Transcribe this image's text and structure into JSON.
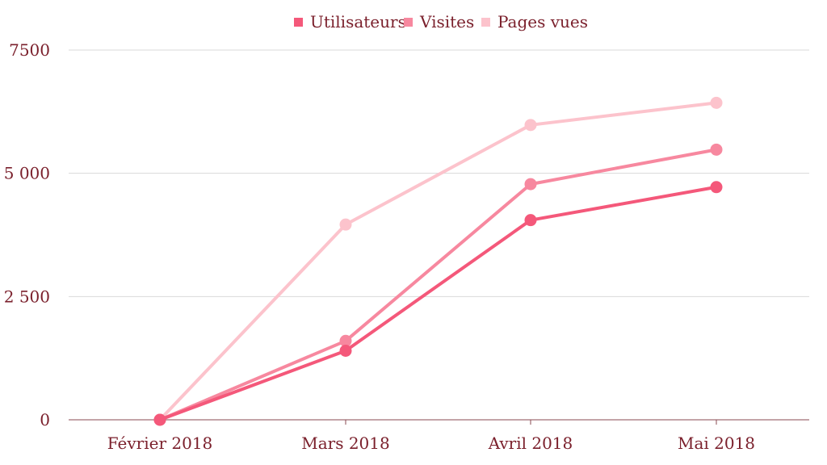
{
  "chart_data": {
    "type": "line",
    "title": "",
    "xlabel": "",
    "ylabel": "",
    "categories": [
      "Février 2018",
      "Mars 2018",
      "Avril 2018",
      "Mai 2018"
    ],
    "series": [
      {
        "name": "Utilisateurs",
        "color": "#f4587a",
        "values": [
          0,
          1400,
          4050,
          4720
        ]
      },
      {
        "name": "Visites",
        "color": "#f7889f",
        "values": [
          0,
          1600,
          4780,
          5480
        ]
      },
      {
        "name": "Pages vues",
        "color": "#fcc3cc",
        "values": [
          0,
          3960,
          5980,
          6430
        ]
      }
    ],
    "ylim": [
      0,
      7500
    ],
    "yticks": [
      {
        "value": 0,
        "label": "0"
      },
      {
        "value": 2500,
        "label": "2 500"
      },
      {
        "value": 5000,
        "label": "5 000"
      },
      {
        "value": 7500,
        "label": "7500"
      }
    ],
    "grid": true,
    "legend_position": "top-center"
  }
}
